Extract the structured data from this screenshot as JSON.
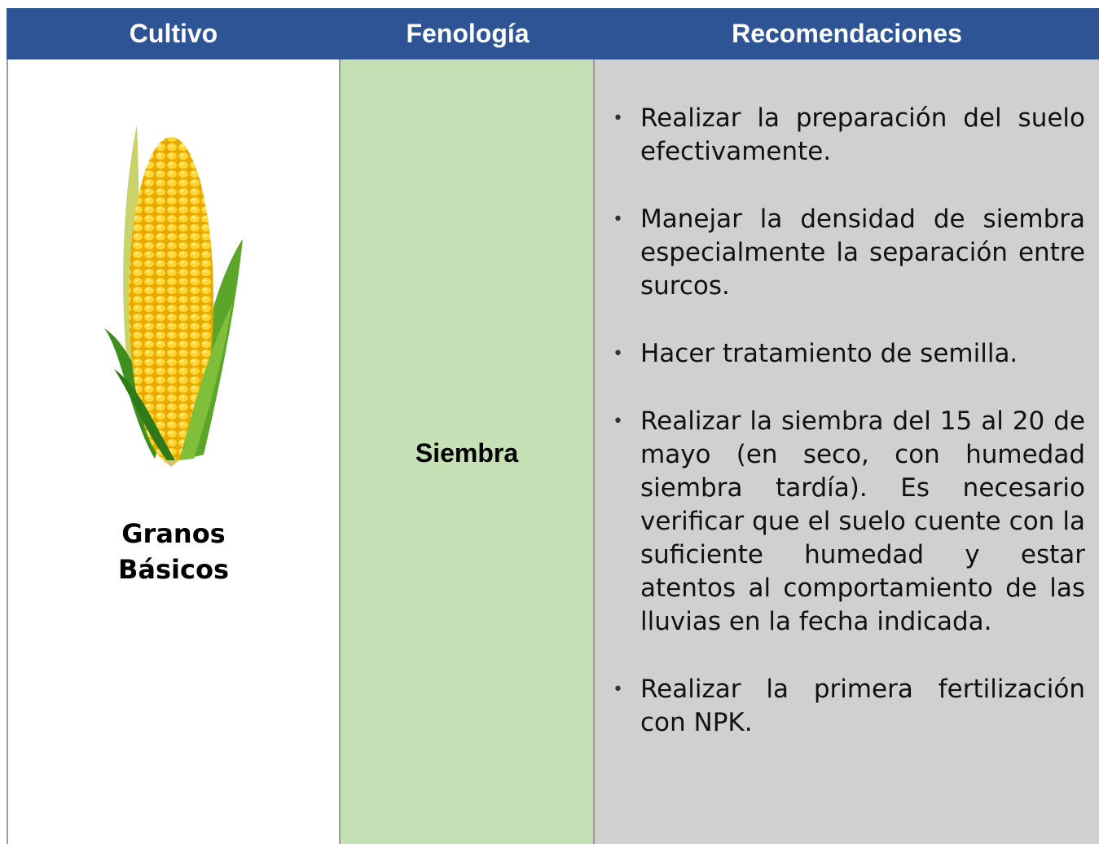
{
  "table": {
    "header": [
      "Cultivo",
      "Fenología",
      "Recomendaciones"
    ],
    "rows": [
      {
        "crop": "Granos Básicos",
        "phenology": "Siembra",
        "recommendations": [
          "Realizar la preparación del suelo efectivamente.",
          "Manejar la densidad de siembra especialmente la separación entre surcos.",
          "Hacer tratamiento de semilla.",
          "Realizar la siembra del 15 al 20 de mayo (en seco, con humedad siembra tardía). Es necesario verificar que el suelo cuente con la suficiente humedad y estar atentos al comportamiento de las lluvias en la fecha indicada.",
          "Realizar la primera fertilización con NPK."
        ]
      }
    ]
  }
}
